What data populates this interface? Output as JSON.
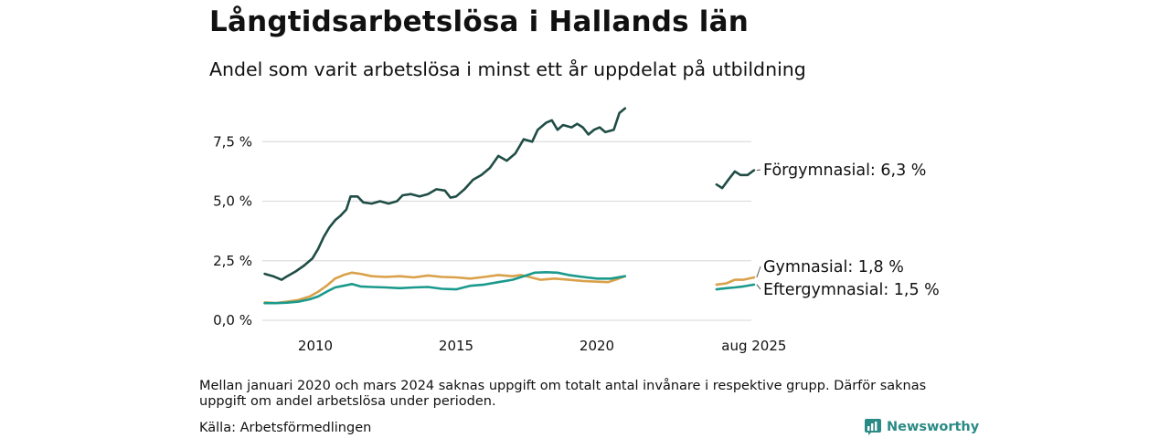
{
  "title": "Långtidsarbetslösa i Hallands län",
  "subtitle": "Andel som varit arbetslösa i minst ett år uppdelat på utbildning",
  "note": "Mellan januari 2020 och mars 2024 saknas uppgift om totalt antal invånare i respektive grupp. Därför saknas uppgift om andel arbetslösa under perioden.",
  "source": "Källa: Arbetsförmedlingen",
  "brand": "Newsworthy",
  "colors": {
    "forgymnasial": "#1f4d45",
    "gymnasial": "#d9a14a",
    "eftergymnasial": "#1a9a8c",
    "grid": "#dddddd"
  },
  "chart_data": {
    "type": "line",
    "ylim": [
      0,
      9
    ],
    "yticks": [
      0,
      2.5,
      5,
      7.5
    ],
    "ytick_labels": [
      "0,0 %",
      "2,5 %",
      "5,0 %",
      "7,5 %"
    ],
    "xticks": [
      2010,
      2015,
      2020,
      2025.58
    ],
    "xtick_labels": [
      "2010",
      "2015",
      "2020",
      "aug 2025"
    ],
    "grid": true,
    "series": [
      {
        "name": "Förgymnasial",
        "end_label": "Förgymnasial: 6,3 %",
        "color_key": "forgymnasial",
        "segments": [
          [
            [
              2008.2,
              1.95
            ],
            [
              2008.5,
              1.85
            ],
            [
              2008.8,
              1.7
            ],
            [
              2009.0,
              1.85
            ],
            [
              2009.3,
              2.05
            ],
            [
              2009.6,
              2.3
            ],
            [
              2009.9,
              2.6
            ],
            [
              2010.1,
              3.0
            ],
            [
              2010.3,
              3.5
            ],
            [
              2010.5,
              3.9
            ],
            [
              2010.7,
              4.2
            ],
            [
              2010.9,
              4.4
            ],
            [
              2011.1,
              4.65
            ],
            [
              2011.25,
              5.2
            ],
            [
              2011.5,
              5.2
            ],
            [
              2011.7,
              4.95
            ],
            [
              2012.0,
              4.9
            ],
            [
              2012.3,
              5.0
            ],
            [
              2012.6,
              4.9
            ],
            [
              2012.9,
              5.0
            ],
            [
              2013.1,
              5.25
            ],
            [
              2013.4,
              5.3
            ],
            [
              2013.7,
              5.2
            ],
            [
              2014.0,
              5.3
            ],
            [
              2014.3,
              5.5
            ],
            [
              2014.6,
              5.45
            ],
            [
              2014.8,
              5.15
            ],
            [
              2015.0,
              5.2
            ],
            [
              2015.3,
              5.5
            ],
            [
              2015.6,
              5.9
            ],
            [
              2015.9,
              6.1
            ],
            [
              2016.2,
              6.4
            ],
            [
              2016.5,
              6.9
            ],
            [
              2016.8,
              6.7
            ],
            [
              2017.1,
              7.0
            ],
            [
              2017.4,
              7.6
            ],
            [
              2017.7,
              7.5
            ],
            [
              2017.9,
              8.0
            ],
            [
              2018.2,
              8.3
            ],
            [
              2018.4,
              8.4
            ],
            [
              2018.6,
              8.0
            ],
            [
              2018.8,
              8.2
            ],
            [
              2019.1,
              8.1
            ],
            [
              2019.3,
              8.25
            ],
            [
              2019.5,
              8.1
            ],
            [
              2019.7,
              7.8
            ],
            [
              2019.9,
              8.0
            ],
            [
              2020.1,
              8.1
            ],
            [
              2020.3,
              7.9
            ],
            [
              2020.6,
              8.0
            ],
            [
              2020.8,
              8.7
            ],
            [
              2021.0,
              8.9
            ]
          ],
          [
            [
              2024.25,
              5.7
            ],
            [
              2024.45,
              5.55
            ],
            [
              2024.7,
              5.95
            ],
            [
              2024.9,
              6.25
            ],
            [
              2025.1,
              6.1
            ],
            [
              2025.35,
              6.1
            ],
            [
              2025.58,
              6.3
            ]
          ]
        ]
      },
      {
        "name": "Gymnasial",
        "end_label": "Gymnasial: 1,8 %",
        "color_key": "gymnasial",
        "segments": [
          [
            [
              2008.2,
              0.75
            ],
            [
              2008.6,
              0.72
            ],
            [
              2009.0,
              0.78
            ],
            [
              2009.4,
              0.85
            ],
            [
              2009.8,
              1.0
            ],
            [
              2010.1,
              1.2
            ],
            [
              2010.4,
              1.45
            ],
            [
              2010.7,
              1.75
            ],
            [
              2011.0,
              1.9
            ],
            [
              2011.3,
              2.0
            ],
            [
              2011.6,
              1.95
            ],
            [
              2012.0,
              1.85
            ],
            [
              2012.5,
              1.82
            ],
            [
              2013.0,
              1.85
            ],
            [
              2013.5,
              1.8
            ],
            [
              2014.0,
              1.88
            ],
            [
              2014.5,
              1.82
            ],
            [
              2015.0,
              1.8
            ],
            [
              2015.5,
              1.75
            ],
            [
              2016.0,
              1.82
            ],
            [
              2016.5,
              1.9
            ],
            [
              2017.0,
              1.85
            ],
            [
              2017.3,
              1.9
            ],
            [
              2017.6,
              1.82
            ],
            [
              2018.0,
              1.7
            ],
            [
              2018.5,
              1.75
            ],
            [
              2019.0,
              1.7
            ],
            [
              2019.5,
              1.65
            ],
            [
              2020.0,
              1.62
            ],
            [
              2020.4,
              1.6
            ],
            [
              2020.7,
              1.72
            ],
            [
              2021.0,
              1.85
            ]
          ],
          [
            [
              2024.25,
              1.5
            ],
            [
              2024.6,
              1.55
            ],
            [
              2024.9,
              1.7
            ],
            [
              2025.2,
              1.7
            ],
            [
              2025.58,
              1.8
            ]
          ]
        ]
      },
      {
        "name": "Eftergymnasial",
        "end_label": "Eftergymnasial: 1,5 %",
        "color_key": "eftergymnasial",
        "segments": [
          [
            [
              2008.2,
              0.72
            ],
            [
              2008.6,
              0.72
            ],
            [
              2009.0,
              0.74
            ],
            [
              2009.4,
              0.78
            ],
            [
              2009.8,
              0.88
            ],
            [
              2010.1,
              1.0
            ],
            [
              2010.4,
              1.2
            ],
            [
              2010.7,
              1.38
            ],
            [
              2011.0,
              1.45
            ],
            [
              2011.3,
              1.52
            ],
            [
              2011.6,
              1.42
            ],
            [
              2012.0,
              1.4
            ],
            [
              2012.5,
              1.38
            ],
            [
              2013.0,
              1.35
            ],
            [
              2013.5,
              1.38
            ],
            [
              2014.0,
              1.4
            ],
            [
              2014.5,
              1.32
            ],
            [
              2015.0,
              1.3
            ],
            [
              2015.5,
              1.45
            ],
            [
              2016.0,
              1.5
            ],
            [
              2016.5,
              1.6
            ],
            [
              2017.0,
              1.7
            ],
            [
              2017.4,
              1.85
            ],
            [
              2017.8,
              2.0
            ],
            [
              2018.2,
              2.02
            ],
            [
              2018.6,
              2.0
            ],
            [
              2019.0,
              1.9
            ],
            [
              2019.5,
              1.82
            ],
            [
              2020.0,
              1.75
            ],
            [
              2020.5,
              1.75
            ],
            [
              2021.0,
              1.85
            ]
          ],
          [
            [
              2024.25,
              1.3
            ],
            [
              2024.6,
              1.35
            ],
            [
              2024.9,
              1.38
            ],
            [
              2025.2,
              1.42
            ],
            [
              2025.58,
              1.5
            ]
          ]
        ]
      }
    ]
  }
}
